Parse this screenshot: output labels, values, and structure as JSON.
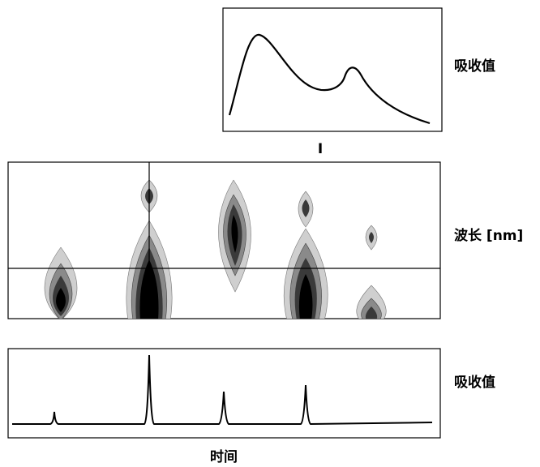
{
  "top_panel": {
    "y_label": "吸收值",
    "marker": "I"
  },
  "contour_panel": {
    "y_label": "波长 [nm]"
  },
  "bottom_panel": {
    "y_label": "吸收值",
    "x_label": "时间"
  }
}
